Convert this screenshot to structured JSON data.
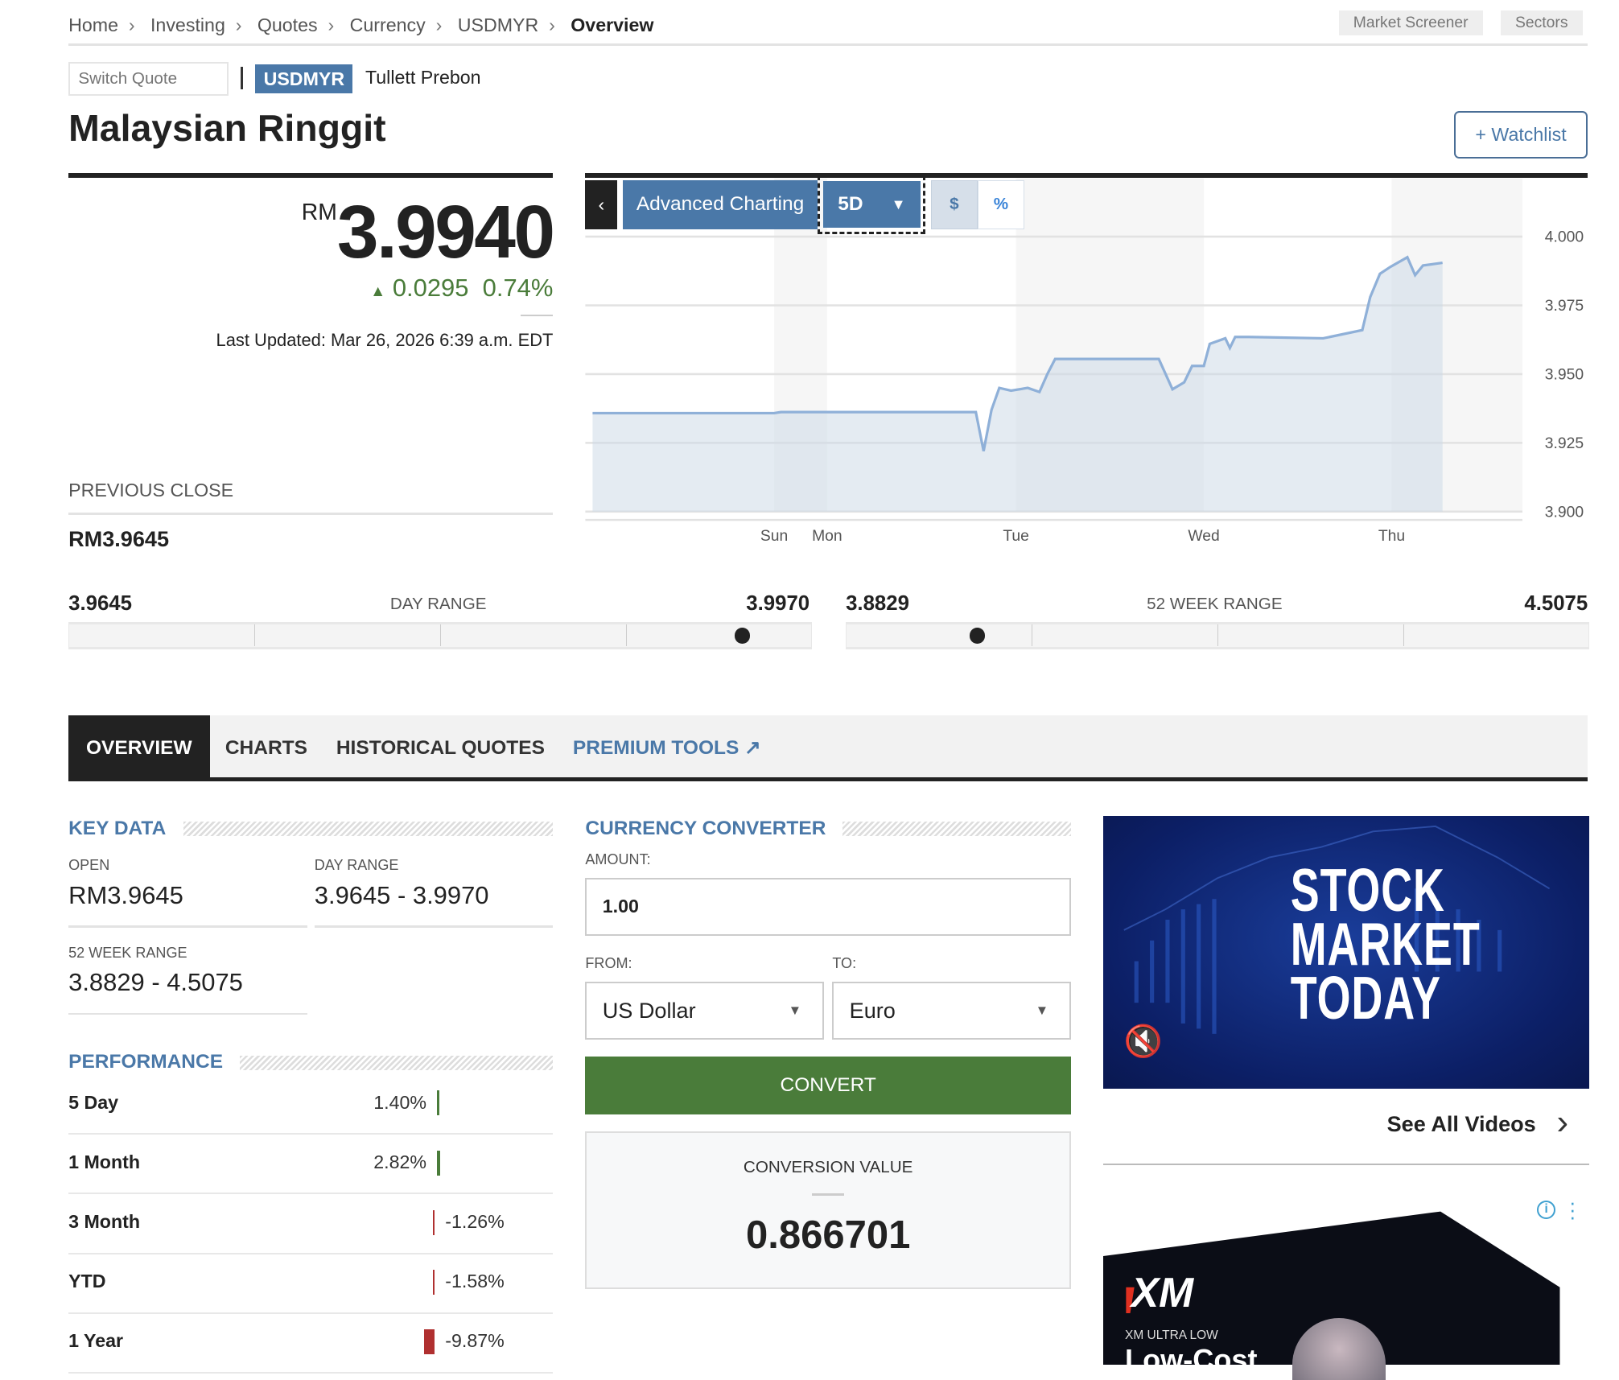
{
  "breadcrumb": [
    "Home",
    "Investing",
    "Quotes",
    "Currency",
    "USDMYR",
    "Overview"
  ],
  "top_buttons": {
    "screener": "Market Screener",
    "sectors": "Sectors"
  },
  "quote": {
    "switch_placeholder": "Switch Quote",
    "symbol": "USDMYR",
    "source": "Tullett Prebon",
    "name": "Malaysian Ringgit",
    "watchlist": "Watchlist",
    "currency": "RM",
    "price": "3.9940",
    "change": "0.0295",
    "change_pct": "0.74%",
    "last_updated": "Last Updated: Mar 26, 2026 6:39 a.m. EDT",
    "prev_close_label": "PREVIOUS CLOSE",
    "prev_close": "RM3.9645"
  },
  "colors": {
    "accent": "#4a78a8",
    "up": "#4a7c3a",
    "down": "#b03030",
    "dark": "#222222"
  },
  "chart_controls": {
    "advanced": "Advanced Charting",
    "range": "5D",
    "dollar": "$",
    "percent": "%"
  },
  "chart_data": {
    "type": "area",
    "x_ticks": [
      "Sun",
      "Mon",
      "Tue",
      "Wed",
      "Thu"
    ],
    "y_ticks": [
      "4.000",
      "3.975",
      "3.950",
      "3.925",
      "3.900"
    ],
    "ylim": [
      3.9,
      4.0
    ],
    "grid": true,
    "series": [
      {
        "points": [
          [
            "Fri 17:00",
            3.9358
          ],
          [
            "Sat 23:59",
            3.9358
          ],
          [
            "Sun 03:00",
            3.9362
          ],
          [
            "Mon 19:00",
            3.9362
          ],
          [
            "Mon 20:00",
            3.922
          ],
          [
            "Mon 21:00",
            3.937
          ],
          [
            "Mon 22:00",
            3.945
          ],
          [
            "Mon 23:30",
            3.944
          ],
          [
            "Tue 01:30",
            3.945
          ],
          [
            "Tue 03:00",
            3.9435
          ],
          [
            "Tue 04:00",
            3.95
          ],
          [
            "Tue 05:00",
            3.9555
          ],
          [
            "Tue 18:15",
            3.9555
          ],
          [
            "Tue 20:00",
            3.9445
          ],
          [
            "Tue 21:30",
            3.947
          ],
          [
            "Tue 22:30",
            3.953
          ],
          [
            "Wed 00:00",
            3.953
          ],
          [
            "Wed 00:45",
            3.961
          ],
          [
            "Wed 02:45",
            3.963
          ],
          [
            "Wed 03:20",
            3.9595
          ],
          [
            "Wed 04:00",
            3.9635
          ],
          [
            "Wed 05:45",
            3.9635
          ],
          [
            "Wed 15:15",
            3.963
          ],
          [
            "Wed 20:15",
            3.966
          ],
          [
            "Wed 21:15",
            3.978
          ],
          [
            "Wed 22:30",
            3.9865
          ],
          [
            "Wed 23:50",
            3.989
          ],
          [
            "Thu 02:00",
            3.9925
          ],
          [
            "Thu 03:00",
            3.986
          ],
          [
            "Thu 04:00",
            3.9895
          ],
          [
            "Thu 06:30",
            3.9905
          ]
        ]
      }
    ]
  },
  "ranges": {
    "day": {
      "label": "DAY RANGE",
      "low": "3.9645",
      "high": "3.9970"
    },
    "week52": {
      "label": "52 WEEK RANGE",
      "low": "3.8829",
      "high": "4.5075"
    },
    "current": 3.994
  },
  "tabs": [
    "OVERVIEW",
    "CHARTS",
    "HISTORICAL QUOTES",
    "PREMIUM TOOLS"
  ],
  "key_data": {
    "title": "KEY DATA",
    "open_label": "OPEN",
    "open": "RM3.9645",
    "day_range_label": "DAY RANGE",
    "day_range": "3.9645 - 3.9970",
    "week52_label": "52 WEEK RANGE",
    "week52": "3.8829 - 4.5075"
  },
  "performance": {
    "title": "PERFORMANCE",
    "rows": [
      {
        "label": "5 Day",
        "value": "1.40%",
        "num": 1.4
      },
      {
        "label": "1 Month",
        "value": "2.82%",
        "num": 2.82
      },
      {
        "label": "3 Month",
        "value": "-1.26%",
        "num": -1.26
      },
      {
        "label": "YTD",
        "value": "-1.58%",
        "num": -1.58
      },
      {
        "label": "1 Year",
        "value": "-9.87%",
        "num": -9.87
      }
    ]
  },
  "converter": {
    "title": "CURRENCY CONVERTER",
    "amount_label": "AMOUNT:",
    "amount": "1.00",
    "from_label": "FROM:",
    "from": "US Dollar",
    "to_label": "TO:",
    "to": "Euro",
    "convert": "CONVERT",
    "result_label": "CONVERSION VALUE",
    "result": "0.866701"
  },
  "video": {
    "title": "STOCK MARKET TODAY",
    "see_all": "See All Videos"
  },
  "ad": {
    "brand": "XM",
    "line1": "XM ULTRA LOW",
    "line2": "Low-Cost"
  }
}
